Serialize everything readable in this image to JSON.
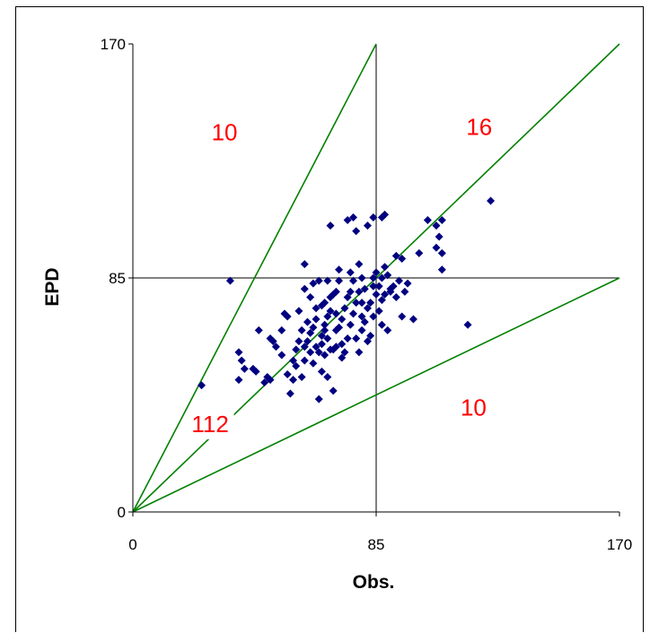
{
  "chart_data": {
    "type": "scatter",
    "title": "",
    "xlabel": "Obs.",
    "ylabel": "EPD",
    "xlim": [
      0,
      170
    ],
    "ylim": [
      0,
      170
    ],
    "x_ticks": [
      "0",
      "85",
      "170"
    ],
    "y_ticks": [
      "0",
      "85",
      "170"
    ],
    "grid": "reference lines at 85",
    "colors": {
      "points": "#000080",
      "lines": "#008000",
      "annotations": "#ff0000",
      "axes": "#000000"
    },
    "reference_lines": [
      {
        "slope": 2.0,
        "intercept": 0
      },
      {
        "slope": 1.0,
        "intercept": 0
      },
      {
        "slope": 0.5,
        "intercept": 0
      }
    ],
    "region_counts": [
      {
        "text": "10",
        "x": 32,
        "y": 135
      },
      {
        "text": "16",
        "x": 121,
        "y": 137
      },
      {
        "text": "112",
        "x": 27,
        "y": 29
      },
      {
        "text": "10",
        "x": 119,
        "y": 35
      }
    ],
    "series": [
      {
        "points": [
          [
            24,
            46
          ],
          [
            34,
            84
          ],
          [
            37,
            58
          ],
          [
            38,
            55
          ],
          [
            39,
            52
          ],
          [
            37,
            48
          ],
          [
            42,
            52
          ],
          [
            43,
            51
          ],
          [
            44,
            66
          ],
          [
            46,
            47
          ],
          [
            47,
            49
          ],
          [
            48,
            48
          ],
          [
            49,
            62
          ],
          [
            48,
            63
          ],
          [
            50,
            60
          ],
          [
            52,
            57
          ],
          [
            53,
            72
          ],
          [
            54,
            71
          ],
          [
            54,
            50
          ],
          [
            55,
            43
          ],
          [
            56,
            48
          ],
          [
            57,
            53
          ],
          [
            57,
            59
          ],
          [
            58,
            62
          ],
          [
            58,
            73
          ],
          [
            59,
            49
          ],
          [
            60,
            60
          ],
          [
            60,
            55
          ],
          [
            61,
            62
          ],
          [
            61,
            69
          ],
          [
            60,
            90
          ],
          [
            62,
            78
          ],
          [
            62,
            65
          ],
          [
            63,
            54
          ],
          [
            63,
            83
          ],
          [
            64,
            60
          ],
          [
            64,
            70
          ],
          [
            65,
            41
          ],
          [
            65,
            58
          ],
          [
            66,
            64
          ],
          [
            66,
            75
          ],
          [
            66,
            51
          ],
          [
            67,
            66
          ],
          [
            67,
            68
          ],
          [
            67,
            76
          ],
          [
            68,
            49
          ],
          [
            68,
            63
          ],
          [
            68,
            84
          ],
          [
            69,
            59
          ],
          [
            69,
            73
          ],
          [
            69,
            78
          ],
          [
            70,
            44
          ],
          [
            70,
            59
          ],
          [
            71,
            60
          ],
          [
            71,
            66
          ],
          [
            71,
            72
          ],
          [
            72,
            67
          ],
          [
            72,
            84
          ],
          [
            72,
            88
          ],
          [
            73,
            61
          ],
          [
            73,
            70
          ],
          [
            74,
            74
          ],
          [
            74,
            58
          ],
          [
            75,
            63
          ],
          [
            75,
            78
          ],
          [
            76,
            87
          ],
          [
            76,
            68
          ],
          [
            77,
            72
          ],
          [
            77,
            84
          ],
          [
            78,
            63
          ],
          [
            78,
            76
          ],
          [
            79,
            58
          ],
          [
            79,
            80
          ],
          [
            80,
            71
          ],
          [
            80,
            66
          ],
          [
            80,
            85
          ],
          [
            81,
            81
          ],
          [
            81,
            69
          ],
          [
            82,
            62
          ],
          [
            82,
            74
          ],
          [
            83,
            64
          ],
          [
            84,
            85
          ],
          [
            84,
            71
          ],
          [
            84,
            107
          ],
          [
            85,
            79
          ],
          [
            85,
            87
          ],
          [
            86,
            73
          ],
          [
            86,
            82
          ],
          [
            87,
            77
          ],
          [
            87,
            68
          ],
          [
            87,
            85
          ],
          [
            88,
            89
          ],
          [
            88,
            79
          ],
          [
            89,
            86
          ],
          [
            89,
            66
          ],
          [
            90,
            81
          ],
          [
            90,
            80
          ],
          [
            91,
            82
          ],
          [
            92,
            93
          ],
          [
            92,
            78
          ],
          [
            93,
            84
          ],
          [
            94,
            92
          ],
          [
            94,
            71
          ],
          [
            95,
            80
          ],
          [
            96,
            83
          ],
          [
            98,
            70
          ],
          [
            100,
            94
          ],
          [
            103,
            106
          ],
          [
            106,
            104
          ],
          [
            106,
            96
          ],
          [
            108,
            106
          ],
          [
            108,
            88
          ],
          [
            108,
            94
          ],
          [
            107,
            100
          ],
          [
            117,
            68
          ],
          [
            125,
            113
          ],
          [
            69,
            104
          ],
          [
            75,
            106
          ],
          [
            77,
            107
          ],
          [
            78,
            102
          ],
          [
            82,
            104
          ],
          [
            87,
            107
          ],
          [
            88,
            108
          ],
          [
            62,
            58
          ],
          [
            64,
            74
          ],
          [
            70,
            79
          ],
          [
            73,
            56
          ],
          [
            66,
            61
          ],
          [
            71,
            80
          ],
          [
            59,
            66
          ],
          [
            76,
            80
          ],
          [
            80,
            76
          ],
          [
            83,
            76
          ],
          [
            67,
            57
          ],
          [
            63,
            67
          ],
          [
            79,
            90
          ],
          [
            68,
            71
          ],
          [
            84,
            82
          ],
          [
            56,
            55
          ],
          [
            52,
            66
          ],
          [
            60,
            81
          ],
          [
            65,
            84
          ]
        ]
      }
    ]
  }
}
